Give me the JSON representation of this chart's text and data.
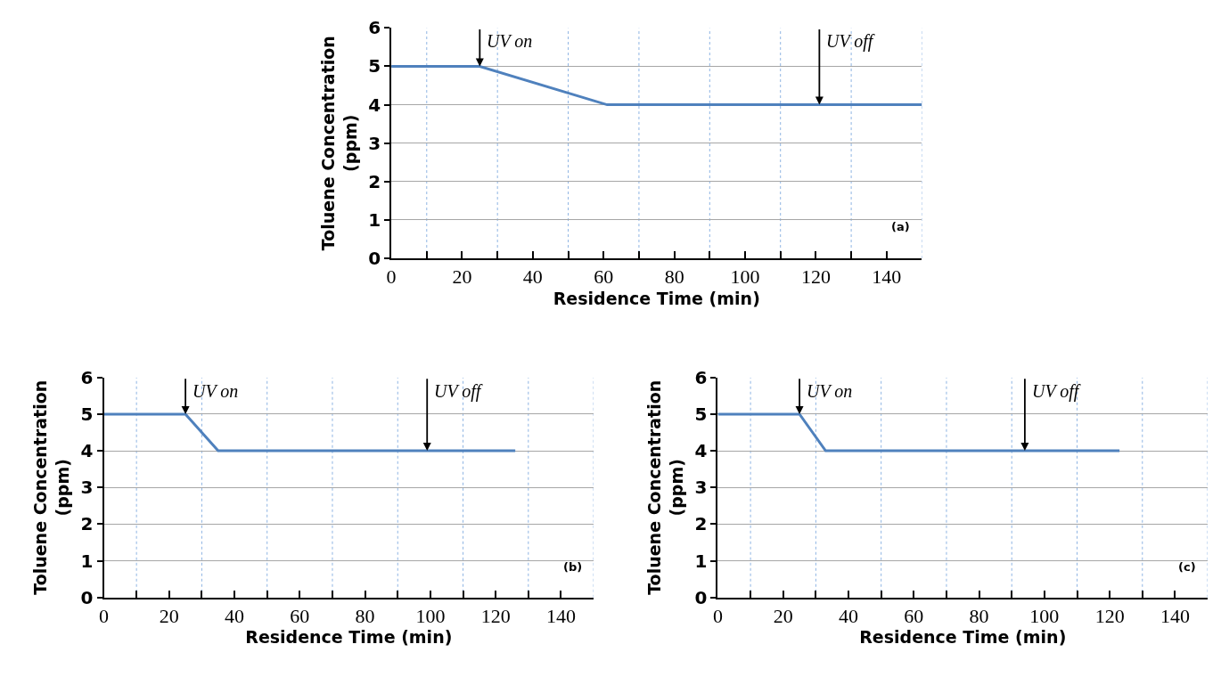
{
  "chart_data": [
    {
      "type": "line",
      "xlabel": "Residence Time (min)",
      "ylabel": "Toluene Concentration\n(ppm)",
      "color": "#4f81bd",
      "line_style": "solid",
      "grid": true,
      "x": [
        0,
        25,
        61,
        150
      ],
      "values": [
        5,
        5,
        4,
        4
      ],
      "xlim": [
        0,
        150
      ],
      "ylim": [
        0,
        6
      ],
      "xticks": [
        0,
        {
          "value": 10,
          "label": null
        },
        20,
        {
          "value": 30,
          "label": null
        },
        40,
        {
          "value": 50,
          "label": null
        },
        60,
        {
          "value": 70,
          "label": null
        },
        80,
        {
          "value": 90,
          "label": null
        },
        100,
        {
          "value": 110,
          "label": null
        },
        120,
        {
          "value": 130,
          "label": null
        },
        140,
        {
          "value": 150,
          "label": null
        }
      ],
      "yticks": [
        0,
        1,
        2,
        3,
        4,
        5,
        6
      ],
      "annotations": [
        {
          "text": "UV on",
          "x": 25,
          "y": 5
        },
        {
          "text": "UV off",
          "x": 121,
          "y": 4
        },
        "(a)"
      ]
    },
    {
      "type": "line",
      "xlabel": "Residence Time (min)",
      "ylabel": "Toluene Concentration\n(ppm)",
      "color": "#4f81bd",
      "line_style": "solid",
      "grid": true,
      "x": [
        0,
        25,
        35,
        126
      ],
      "values": [
        5,
        5,
        4,
        4
      ],
      "xlim": [
        0,
        150
      ],
      "ylim": [
        0,
        6
      ],
      "xticks": [
        0,
        {
          "value": 10,
          "label": null
        },
        20,
        {
          "value": 30,
          "label": null
        },
        40,
        {
          "value": 50,
          "label": null
        },
        60,
        {
          "value": 70,
          "label": null
        },
        80,
        {
          "value": 90,
          "label": null
        },
        100,
        {
          "value": 110,
          "label": null
        },
        120,
        {
          "value": 130,
          "label": null
        },
        140,
        {
          "value": 150,
          "label": null
        }
      ],
      "yticks": [
        0,
        1,
        2,
        3,
        4,
        5,
        6
      ],
      "annotations": [
        {
          "text": "UV on",
          "x": 25,
          "y": 5
        },
        {
          "text": "UV off",
          "x": 99,
          "y": 4
        },
        "(b)"
      ]
    },
    {
      "type": "line",
      "xlabel": "Residence Time (min)",
      "ylabel": "Toluene Concentration\n(ppm)",
      "color": "#4f81bd",
      "line_style": "solid",
      "grid": true,
      "x": [
        0,
        25,
        33,
        123
      ],
      "values": [
        5,
        5,
        4,
        4
      ],
      "xlim": [
        0,
        150
      ],
      "ylim": [
        0,
        6
      ],
      "xticks": [
        0,
        {
          "value": 10,
          "label": null
        },
        20,
        {
          "value": 30,
          "label": null
        },
        40,
        {
          "value": 50,
          "label": null
        },
        60,
        {
          "value": 70,
          "label": null
        },
        80,
        {
          "value": 90,
          "label": null
        },
        100,
        {
          "value": 110,
          "label": null
        },
        120,
        {
          "value": 130,
          "label": null
        },
        140,
        {
          "value": 150,
          "label": null
        }
      ],
      "yticks": [
        0,
        1,
        2,
        3,
        4,
        5,
        6
      ],
      "annotations": [
        {
          "text": "UV on",
          "x": 25,
          "y": 5
        },
        {
          "text": "UV off",
          "x": 94,
          "y": 4
        },
        "(c)"
      ]
    }
  ]
}
